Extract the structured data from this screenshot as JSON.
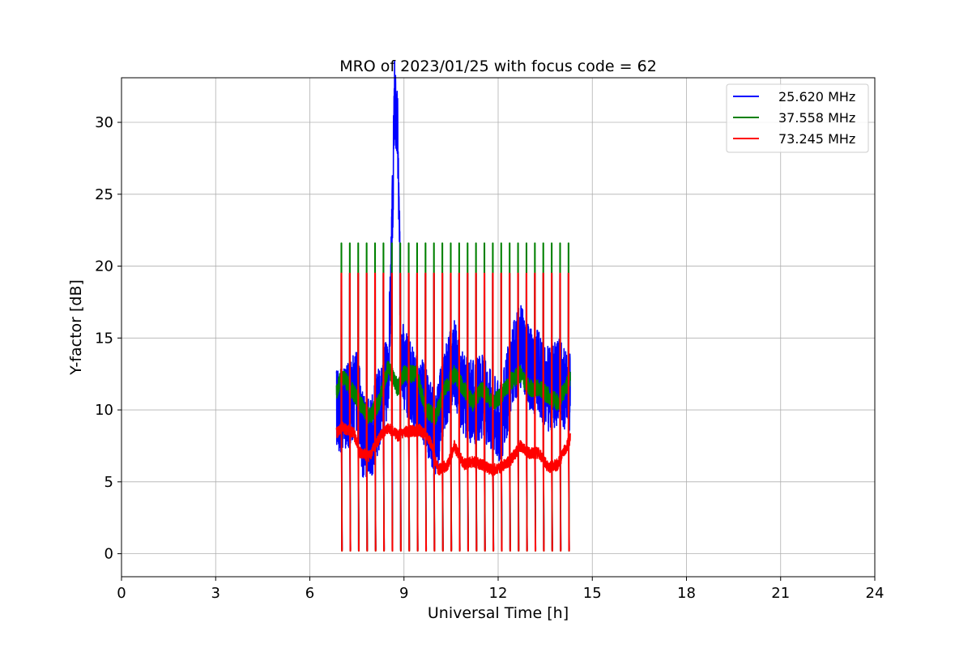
{
  "chart_data": {
    "type": "line",
    "title": "MRO of 2023/01/25 with focus code = 62",
    "xlabel": "Universal Time [h]",
    "ylabel": "Y-factor [dB]",
    "xlim": [
      0,
      24
    ],
    "ylim": [
      -1.6,
      33.1
    ],
    "xticks": [
      0,
      3,
      6,
      9,
      12,
      15,
      18,
      21,
      24
    ],
    "yticks": [
      0,
      5,
      10,
      15,
      20,
      25,
      30
    ],
    "grid": true,
    "legend_position": "top-right",
    "time_range_h": [
      6.85,
      14.3
    ],
    "calibration_period_h": 0.268,
    "calibration_start_h": 7.0,
    "series": [
      {
        "name": "25.620 MHz",
        "color": "#0000ff",
        "calibration_high": 19.5,
        "calibration_low": 0.3,
        "baseline": [
          [
            6.85,
            10.2
          ],
          [
            7.0,
            9.8
          ],
          [
            7.3,
            10.5
          ],
          [
            7.5,
            11.5
          ],
          [
            7.7,
            8.0
          ],
          [
            8.0,
            8.5
          ],
          [
            8.3,
            11.0
          ],
          [
            8.5,
            12.5
          ],
          [
            8.6,
            20.0
          ],
          [
            8.7,
            31.5
          ],
          [
            8.8,
            29.0
          ],
          [
            8.9,
            15.0
          ],
          [
            9.0,
            13.0
          ],
          [
            9.3,
            11.5
          ],
          [
            9.5,
            11.0
          ],
          [
            9.8,
            9.5
          ],
          [
            10.0,
            8.0
          ],
          [
            10.3,
            11.5
          ],
          [
            10.6,
            13.5
          ],
          [
            10.9,
            11.0
          ],
          [
            11.2,
            10.5
          ],
          [
            11.5,
            11.0
          ],
          [
            11.8,
            10.0
          ],
          [
            12.1,
            9.0
          ],
          [
            12.4,
            12.5
          ],
          [
            12.7,
            14.5
          ],
          [
            13.0,
            13.0
          ],
          [
            13.3,
            12.5
          ],
          [
            13.6,
            11.5
          ],
          [
            14.0,
            12.0
          ],
          [
            14.3,
            11.0
          ]
        ],
        "spike_amplitude": 3.0
      },
      {
        "name": "37.558 MHz",
        "color": "#008000",
        "calibration_high": 21.6,
        "calibration_low": 0.2,
        "baseline": [
          [
            6.85,
            11.2
          ],
          [
            7.0,
            12.5
          ],
          [
            7.3,
            11.5
          ],
          [
            7.6,
            10.5
          ],
          [
            7.9,
            9.5
          ],
          [
            8.2,
            10.5
          ],
          [
            8.5,
            13.0
          ],
          [
            8.8,
            11.5
          ],
          [
            9.0,
            12.5
          ],
          [
            9.4,
            12.5
          ],
          [
            9.7,
            10.0
          ],
          [
            10.0,
            9.5
          ],
          [
            10.3,
            11.5
          ],
          [
            10.6,
            12.5
          ],
          [
            10.9,
            11.5
          ],
          [
            11.2,
            10.5
          ],
          [
            11.5,
            11.5
          ],
          [
            11.8,
            10.5
          ],
          [
            12.1,
            11.0
          ],
          [
            12.4,
            12.0
          ],
          [
            12.7,
            12.5
          ],
          [
            13.0,
            11.5
          ],
          [
            13.3,
            11.5
          ],
          [
            13.6,
            11.0
          ],
          [
            13.9,
            10.5
          ],
          [
            14.3,
            12.2
          ]
        ],
        "spike_amplitude": 0.6
      },
      {
        "name": "73.245 MHz",
        "color": "#ff0000",
        "calibration_high": 19.5,
        "calibration_low": 0.2,
        "baseline": [
          [
            6.85,
            8.4
          ],
          [
            7.0,
            8.8
          ],
          [
            7.4,
            8.4
          ],
          [
            7.6,
            7.0
          ],
          [
            7.9,
            6.8
          ],
          [
            8.2,
            8.0
          ],
          [
            8.5,
            8.8
          ],
          [
            8.8,
            8.2
          ],
          [
            9.1,
            8.5
          ],
          [
            9.5,
            8.6
          ],
          [
            9.8,
            8.0
          ],
          [
            10.1,
            5.8
          ],
          [
            10.4,
            6.2
          ],
          [
            10.6,
            7.5
          ],
          [
            10.9,
            6.2
          ],
          [
            11.2,
            6.4
          ],
          [
            11.5,
            6.2
          ],
          [
            11.8,
            5.8
          ],
          [
            12.1,
            6.0
          ],
          [
            12.4,
            6.5
          ],
          [
            12.7,
            7.5
          ],
          [
            13.0,
            7.0
          ],
          [
            13.3,
            7.0
          ],
          [
            13.6,
            6.0
          ],
          [
            13.9,
            6.2
          ],
          [
            14.3,
            8.0
          ]
        ],
        "spike_amplitude": 0.4
      }
    ]
  }
}
